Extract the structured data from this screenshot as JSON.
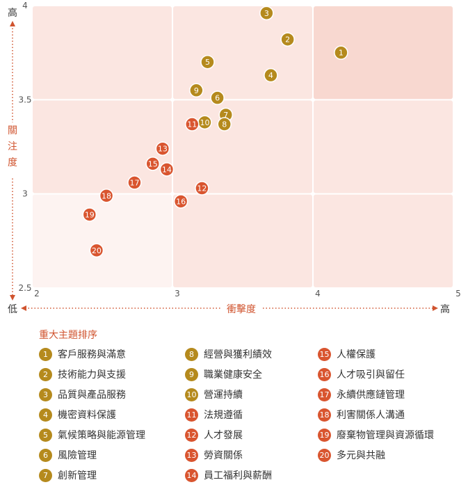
{
  "colors": {
    "gold": "#b58a1d",
    "red": "#d9552f",
    "accent": "#d0542f",
    "cell_light": "#fdf3f1",
    "cell_mid": "#fbe6e1",
    "cell_dark": "#f8d8d0"
  },
  "chart_data": {
    "type": "scatter",
    "xlabel": "衝擊度",
    "ylabel": "關注度",
    "x_low": "低",
    "x_high": "高",
    "y_high": "高",
    "xlim": [
      2,
      5
    ],
    "ylim": [
      2.5,
      4
    ],
    "x_ticks": [
      "2",
      "3",
      "4",
      "5"
    ],
    "y_ticks": [
      "2.5",
      "3",
      "3.5",
      "4"
    ],
    "grid": "3x3 shaded matrix",
    "points": [
      {
        "id": "1",
        "x": 4.2,
        "y": 3.75,
        "color": "gold"
      },
      {
        "id": "2",
        "x": 3.82,
        "y": 3.82,
        "color": "gold"
      },
      {
        "id": "3",
        "x": 3.67,
        "y": 3.96,
        "color": "gold"
      },
      {
        "id": "4",
        "x": 3.7,
        "y": 3.63,
        "color": "gold"
      },
      {
        "id": "5",
        "x": 3.25,
        "y": 3.7,
        "color": "gold"
      },
      {
        "id": "6",
        "x": 3.32,
        "y": 3.51,
        "color": "gold"
      },
      {
        "id": "7",
        "x": 3.38,
        "y": 3.42,
        "color": "gold"
      },
      {
        "id": "8",
        "x": 3.37,
        "y": 3.37,
        "color": "gold"
      },
      {
        "id": "9",
        "x": 3.17,
        "y": 3.55,
        "color": "gold"
      },
      {
        "id": "10",
        "x": 3.23,
        "y": 3.38,
        "color": "gold"
      },
      {
        "id": "11",
        "x": 3.14,
        "y": 3.37,
        "color": "red"
      },
      {
        "id": "12",
        "x": 3.21,
        "y": 3.03,
        "color": "red"
      },
      {
        "id": "13",
        "x": 2.93,
        "y": 3.24,
        "color": "red"
      },
      {
        "id": "14",
        "x": 2.96,
        "y": 3.13,
        "color": "red"
      },
      {
        "id": "15",
        "x": 2.86,
        "y": 3.16,
        "color": "red"
      },
      {
        "id": "16",
        "x": 3.06,
        "y": 2.96,
        "color": "red"
      },
      {
        "id": "17",
        "x": 2.73,
        "y": 3.06,
        "color": "red"
      },
      {
        "id": "18",
        "x": 2.53,
        "y": 2.99,
        "color": "red"
      },
      {
        "id": "19",
        "x": 2.41,
        "y": 2.89,
        "color": "red"
      },
      {
        "id": "20",
        "x": 2.46,
        "y": 2.7,
        "color": "red"
      }
    ]
  },
  "legend": {
    "title": "重大主題排序",
    "columns": [
      [
        {
          "id": "1",
          "label": "客戶服務與滿意",
          "color": "gold"
        },
        {
          "id": "2",
          "label": "技術能力與支援",
          "color": "gold"
        },
        {
          "id": "3",
          "label": "品質與產品服務",
          "color": "gold"
        },
        {
          "id": "4",
          "label": "機密資料保護",
          "color": "gold"
        },
        {
          "id": "5",
          "label": "氣候策略與能源管理",
          "color": "gold"
        },
        {
          "id": "6",
          "label": "風險管理",
          "color": "gold"
        },
        {
          "id": "7",
          "label": "創新管理",
          "color": "gold"
        }
      ],
      [
        {
          "id": "8",
          "label": "經營與獲利績效",
          "color": "gold"
        },
        {
          "id": "9",
          "label": "職業健康安全",
          "color": "gold"
        },
        {
          "id": "10",
          "label": "營運持續",
          "color": "gold"
        },
        {
          "id": "11",
          "label": "法規遵循",
          "color": "red"
        },
        {
          "id": "12",
          "label": "人才發展",
          "color": "red"
        },
        {
          "id": "13",
          "label": "勞資關係",
          "color": "red"
        },
        {
          "id": "14",
          "label": "員工福利與薪酬",
          "color": "red"
        }
      ],
      [
        {
          "id": "15",
          "label": "人權保護",
          "color": "red"
        },
        {
          "id": "16",
          "label": "人才吸引與留任",
          "color": "red"
        },
        {
          "id": "17",
          "label": "永續供應鏈管理",
          "color": "red"
        },
        {
          "id": "18",
          "label": "利害關係人溝通",
          "color": "red"
        },
        {
          "id": "19",
          "label": "廢棄物管理與資源循環",
          "color": "red"
        },
        {
          "id": "20",
          "label": "多元與共融",
          "color": "red"
        }
      ]
    ]
  }
}
